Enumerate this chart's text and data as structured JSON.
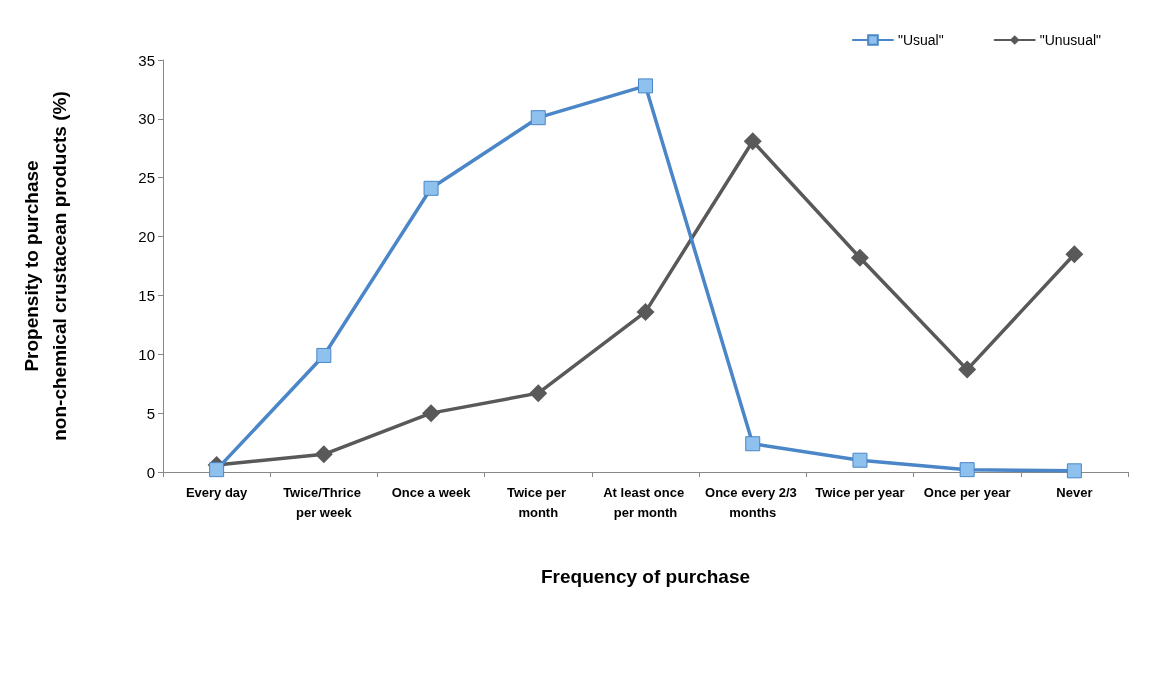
{
  "chart_data": {
    "type": "line",
    "xlabel": "Frequency of purchase",
    "ylabel": "Propensity to purchase\nnon-chemical crustacean products (%)",
    "categories": [
      "Every day",
      "Twice/Thrice per week",
      "Once a week",
      "Twice per month",
      "At least once per month",
      "Once every 2/3 months",
      "Twice per year",
      "Once per year",
      "Never"
    ],
    "series": [
      {
        "name": "\"Usual\"",
        "color": "#4a86c8",
        "marker": "square",
        "values": [
          0.2,
          9.9,
          24.1,
          30.1,
          32.8,
          2.4,
          1.0,
          0.2,
          0.1
        ]
      },
      {
        "name": "\"Unusual\"",
        "color": "#595959",
        "marker": "diamond",
        "values": [
          0.6,
          1.5,
          5.0,
          6.7,
          13.6,
          28.1,
          18.2,
          8.7,
          18.5
        ]
      }
    ],
    "ylim": [
      0,
      35
    ],
    "yticks": [
      0,
      5,
      10,
      15,
      20,
      25,
      30,
      35
    ],
    "grid": false,
    "legend": "top right",
    "line_style": "solid"
  }
}
